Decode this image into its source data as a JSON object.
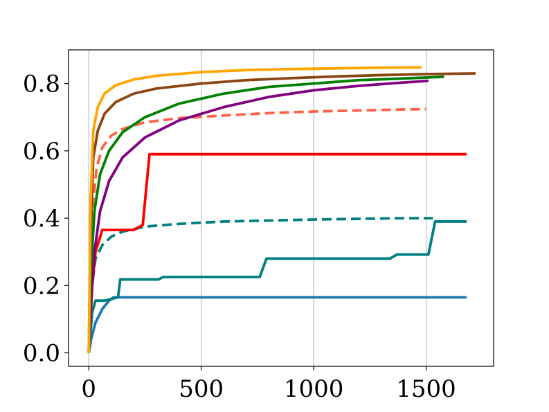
{
  "chart_data": {
    "type": "line",
    "title": "",
    "xlabel": "",
    "ylabel": "",
    "xlim": [
      -90,
      1800
    ],
    "ylim": [
      -0.04,
      0.9
    ],
    "grid": "x-axis vertical gridlines",
    "legend": "none",
    "x_ticks": [
      0,
      500,
      1000,
      1500
    ],
    "x_tick_labels": [
      "0",
      "500",
      "1000",
      "1500"
    ],
    "y_ticks": [
      0.0,
      0.2,
      0.4,
      0.6,
      0.8
    ],
    "y_tick_labels": [
      "0.0",
      "0.2",
      "0.4",
      "0.6",
      "0.8"
    ],
    "series": [
      {
        "color": "#1f77b4",
        "dashed": false,
        "points": [
          [
            0,
            0
          ],
          [
            10,
            0.04
          ],
          [
            30,
            0.09
          ],
          [
            60,
            0.13
          ],
          [
            90,
            0.155
          ],
          [
            110,
            0.165
          ],
          [
            1680,
            0.165
          ]
        ]
      },
      {
        "color": "#008080",
        "dashed": false,
        "points": [
          [
            0,
            0
          ],
          [
            15,
            0.12
          ],
          [
            30,
            0.155
          ],
          [
            70,
            0.155
          ],
          [
            100,
            0.16
          ],
          [
            130,
            0.165
          ],
          [
            140,
            0.218
          ],
          [
            310,
            0.218
          ],
          [
            330,
            0.225
          ],
          [
            760,
            0.225
          ],
          [
            790,
            0.28
          ],
          [
            1340,
            0.28
          ],
          [
            1370,
            0.292
          ],
          [
            1510,
            0.292
          ],
          [
            1540,
            0.39
          ],
          [
            1680,
            0.39
          ]
        ]
      },
      {
        "color": "#008080",
        "dashed": true,
        "points": [
          [
            0,
            0
          ],
          [
            15,
            0.2
          ],
          [
            30,
            0.28
          ],
          [
            60,
            0.32
          ],
          [
            100,
            0.345
          ],
          [
            150,
            0.36
          ],
          [
            250,
            0.375
          ],
          [
            400,
            0.383
          ],
          [
            600,
            0.39
          ],
          [
            800,
            0.393
          ],
          [
            1000,
            0.396
          ],
          [
            1200,
            0.398
          ],
          [
            1400,
            0.4
          ],
          [
            1530,
            0.4
          ]
        ]
      },
      {
        "color": "#ff0000",
        "dashed": false,
        "points": [
          [
            0,
            0
          ],
          [
            15,
            0.2
          ],
          [
            30,
            0.3
          ],
          [
            60,
            0.365
          ],
          [
            200,
            0.365
          ],
          [
            240,
            0.38
          ],
          [
            270,
            0.59
          ],
          [
            1680,
            0.59
          ]
        ]
      },
      {
        "color": "#ff6347",
        "dashed": true,
        "points": [
          [
            0,
            0
          ],
          [
            10,
            0.25
          ],
          [
            20,
            0.45
          ],
          [
            35,
            0.55
          ],
          [
            60,
            0.61
          ],
          [
            100,
            0.645
          ],
          [
            150,
            0.665
          ],
          [
            250,
            0.685
          ],
          [
            400,
            0.697
          ],
          [
            600,
            0.705
          ],
          [
            800,
            0.712
          ],
          [
            1000,
            0.717
          ],
          [
            1200,
            0.72
          ],
          [
            1400,
            0.723
          ],
          [
            1500,
            0.724
          ]
        ]
      },
      {
        "color": "#800080",
        "dashed": false,
        "points": [
          [
            0,
            0
          ],
          [
            10,
            0.15
          ],
          [
            25,
            0.3
          ],
          [
            50,
            0.42
          ],
          [
            90,
            0.51
          ],
          [
            150,
            0.58
          ],
          [
            250,
            0.64
          ],
          [
            400,
            0.69
          ],
          [
            600,
            0.73
          ],
          [
            800,
            0.76
          ],
          [
            1000,
            0.78
          ],
          [
            1200,
            0.793
          ],
          [
            1400,
            0.803
          ],
          [
            1510,
            0.808
          ]
        ]
      },
      {
        "color": "#008000",
        "dashed": false,
        "points": [
          [
            0,
            0
          ],
          [
            10,
            0.25
          ],
          [
            25,
            0.42
          ],
          [
            50,
            0.53
          ],
          [
            90,
            0.6
          ],
          [
            150,
            0.655
          ],
          [
            250,
            0.7
          ],
          [
            400,
            0.74
          ],
          [
            600,
            0.77
          ],
          [
            800,
            0.79
          ],
          [
            1000,
            0.8
          ],
          [
            1200,
            0.81
          ],
          [
            1400,
            0.815
          ],
          [
            1580,
            0.82
          ]
        ]
      },
      {
        "color": "#8b4513",
        "dashed": false,
        "points": [
          [
            0,
            0
          ],
          [
            8,
            0.35
          ],
          [
            20,
            0.58
          ],
          [
            40,
            0.66
          ],
          [
            70,
            0.71
          ],
          [
            120,
            0.745
          ],
          [
            200,
            0.77
          ],
          [
            300,
            0.785
          ],
          [
            500,
            0.8
          ],
          [
            700,
            0.81
          ],
          [
            900,
            0.816
          ],
          [
            1100,
            0.821
          ],
          [
            1300,
            0.825
          ],
          [
            1500,
            0.828
          ],
          [
            1720,
            0.83
          ]
        ]
      },
      {
        "color": "#ffa500",
        "dashed": false,
        "points": [
          [
            0,
            0
          ],
          [
            8,
            0.45
          ],
          [
            20,
            0.66
          ],
          [
            40,
            0.73
          ],
          [
            70,
            0.77
          ],
          [
            120,
            0.795
          ],
          [
            200,
            0.812
          ],
          [
            300,
            0.823
          ],
          [
            500,
            0.834
          ],
          [
            700,
            0.84
          ],
          [
            900,
            0.843
          ],
          [
            1100,
            0.845
          ],
          [
            1300,
            0.847
          ],
          [
            1480,
            0.848
          ]
        ]
      }
    ]
  }
}
